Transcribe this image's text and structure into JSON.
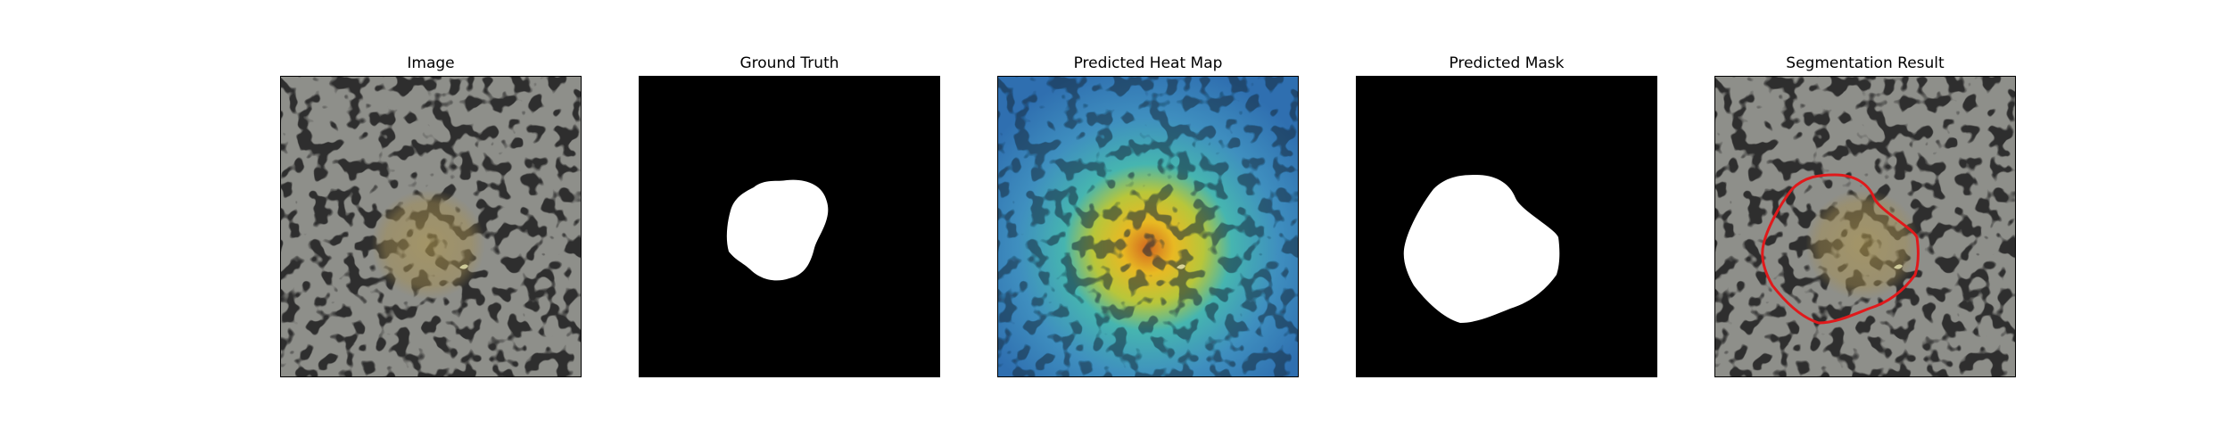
{
  "figure": {
    "panels": [
      {
        "id": "image",
        "title": "Image",
        "kind": "photo"
      },
      {
        "id": "ground-truth",
        "title": "Ground Truth",
        "kind": "mask"
      },
      {
        "id": "heatmap",
        "title": "Predicted Heat Map",
        "kind": "heatmap"
      },
      {
        "id": "predicted-mask",
        "title": "Predicted Mask",
        "kind": "mask"
      },
      {
        "id": "segmentation",
        "title": "Segmentation Result",
        "kind": "overlay"
      }
    ],
    "colors": {
      "background": "#ffffff",
      "speckle_base": "#8e8f8a",
      "speckle_dark": "#2f2f2f",
      "lesion_tint": "#b59a4a",
      "mask_foreground": "#ffffff",
      "mask_background": "#000000",
      "contour": "#e0191b",
      "heat_low": "#2f6fb0",
      "heat_mid": "#46b5b0",
      "heat_high": "#e8b923",
      "heat_peak": "#d2661f"
    }
  }
}
